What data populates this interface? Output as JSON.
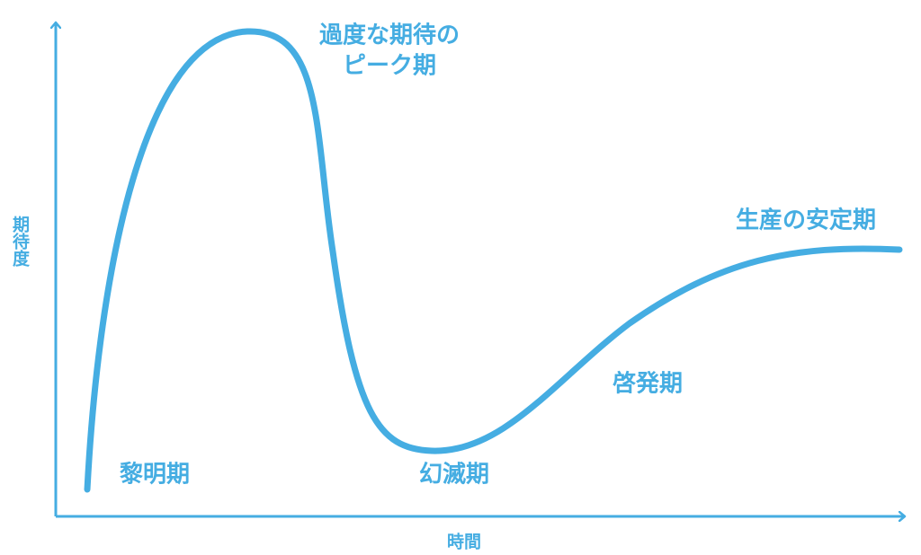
{
  "axes": {
    "y_label": "期待度",
    "x_label": "時間"
  },
  "phases": [
    {
      "lines": [
        "黎明期"
      ]
    },
    {
      "lines": [
        "過度な期待の",
        "ピーク期"
      ]
    },
    {
      "lines": [
        "幻滅期"
      ]
    },
    {
      "lines": [
        "啓発期"
      ]
    },
    {
      "lines": [
        "生産の安定期"
      ]
    }
  ]
}
